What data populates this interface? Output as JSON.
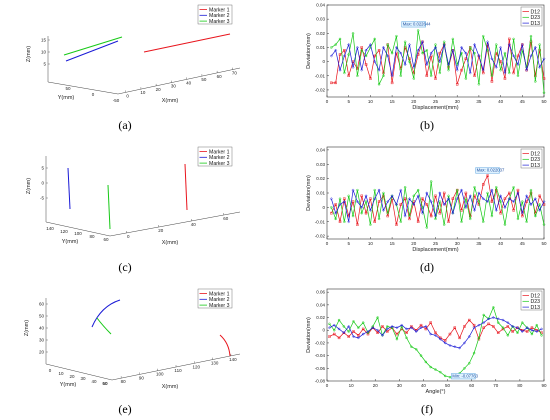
{
  "colors": {
    "d12": "#e8141c",
    "d23": "#16c916",
    "d13": "#1919d6",
    "annotation_fill": "#dff2ff",
    "annotation_stroke": "#3a92d8"
  },
  "panels": [
    {
      "id": "a",
      "label": "(a)"
    },
    {
      "id": "b",
      "label": "(b)"
    },
    {
      "id": "c",
      "label": "(c)"
    },
    {
      "id": "d",
      "label": "(d)"
    },
    {
      "id": "e",
      "label": "(e)"
    },
    {
      "id": "f",
      "label": "(f)"
    }
  ],
  "chart_data": [
    {
      "panel": "a",
      "type": "line3d",
      "xlabel": "X(mm)",
      "ylabel": "Y(mm)",
      "zlabel": "Z(mm)",
      "xticks": [
        "0",
        "10",
        "20",
        "30",
        "40",
        "50",
        "60",
        "70"
      ],
      "yticks": [
        "50",
        "0",
        "-50"
      ],
      "zticks": [
        "15",
        "10",
        "5"
      ],
      "legend": [
        "Marker 1",
        "Marker 2",
        "Marker 3"
      ],
      "series": [
        {
          "name": "Marker 1",
          "color": "#e8141c"
        },
        {
          "name": "Marker 2",
          "color": "#1919d6"
        },
        {
          "name": "Marker 3",
          "color": "#16c916"
        }
      ]
    },
    {
      "panel": "b",
      "type": "line",
      "xlabel": "Displacement(mm)",
      "ylabel": "Deviation(mm)",
      "xlim": [
        0,
        50
      ],
      "ylim": [
        -0.025,
        0.04
      ],
      "xticks": [
        "0",
        "5",
        "10",
        "15",
        "20",
        "25",
        "30",
        "35",
        "40",
        "45",
        "50"
      ],
      "yticks": [
        "0.04",
        "0.03",
        "0.02",
        "0.01",
        "0",
        "-0.01",
        "-0.02"
      ],
      "x": [
        1,
        2,
        3,
        4,
        5,
        6,
        7,
        8,
        9,
        10,
        11,
        12,
        13,
        14,
        15,
        16,
        17,
        18,
        19,
        20,
        21,
        22,
        23,
        24,
        25,
        26,
        27,
        28,
        29,
        30,
        31,
        32,
        33,
        34,
        35,
        36,
        37,
        38,
        39,
        40,
        41,
        42,
        43,
        44,
        45,
        46,
        47,
        48,
        49,
        50
      ],
      "series": [
        {
          "name": "D12",
          "color": "#e8141c",
          "values": [
            -0.015,
            -0.015,
            0.005,
            0.008,
            -0.01,
            0.0,
            -0.005,
            0.01,
            -0.002,
            -0.012,
            0.004,
            0.008,
            -0.008,
            0.012,
            -0.015,
            0.006,
            -0.005,
            0.01,
            0.002,
            -0.008,
            0.005,
            0.014,
            -0.01,
            0.004,
            -0.012,
            0.006,
            0.012,
            -0.004,
            0.008,
            -0.016,
            -0.006,
            0.002,
            0.01,
            -0.01,
            0.004,
            -0.008,
            0.012,
            -0.014,
            0.006,
            0.0,
            -0.012,
            0.016,
            -0.008,
            0.004,
            0.012,
            -0.006,
            0.014,
            -0.01,
            0.008,
            -0.012
          ]
        },
        {
          "name": "D23",
          "color": "#16c916",
          "values": [
            0.01,
            0.012,
            0.016,
            -0.008,
            0.005,
            0.02,
            -0.01,
            0.008,
            0.004,
            0.01,
            0.016,
            -0.016,
            -0.01,
            0.012,
            0.006,
            0.018,
            -0.01,
            0.014,
            0.0,
            -0.012,
            0.022,
            0.006,
            0.008,
            -0.01,
            0.012,
            -0.008,
            0.014,
            -0.006,
            0.016,
            -0.002,
            0.006,
            -0.012,
            0.01,
            0.006,
            -0.016,
            0.018,
            0.008,
            -0.01,
            0.012,
            -0.006,
            0.006,
            -0.008,
            0.016,
            -0.01,
            0.008,
            -0.004,
            0.018,
            -0.014,
            0.012,
            -0.022
          ]
        },
        {
          "name": "D13",
          "color": "#1919d6",
          "values": [
            0.004,
            0.008,
            -0.006,
            0.004,
            0.012,
            -0.004,
            0.01,
            -0.006,
            0.008,
            0.012,
            0.0,
            -0.006,
            0.01,
            0.004,
            -0.01,
            0.01,
            0.006,
            -0.002,
            0.012,
            -0.004,
            0.008,
            0.014,
            -0.002,
            0.006,
            0.01,
            0.0,
            0.012,
            -0.002,
            0.008,
            -0.006,
            0.01,
            0.006,
            -0.008,
            0.012,
            0.004,
            -0.006,
            0.014,
            0.002,
            -0.004,
            0.01,
            -0.008,
            0.012,
            0.004,
            -0.002,
            0.012,
            -0.006,
            0.004,
            0.01,
            -0.004,
            0.002
          ]
        }
      ],
      "legend": [
        "D12",
        "D23",
        "D13"
      ],
      "annotation": {
        "text": "Max: 0.022644",
        "x": 20,
        "y": 0.022644
      }
    },
    {
      "panel": "c",
      "type": "line3d",
      "xlabel": "X(mm)",
      "ylabel": "Y(mm)",
      "zlabel": "Z(mm)",
      "xticks": [
        "0",
        "20",
        "40",
        "60"
      ],
      "yticks": [
        "140",
        "120",
        "100",
        "80",
        "60"
      ],
      "zticks": [
        "5",
        "0",
        "-5"
      ],
      "legend": [
        "Marker 1",
        "Marker 2",
        "Marker 3"
      ],
      "series": [
        {
          "name": "Marker 1",
          "color": "#e8141c"
        },
        {
          "name": "Marker 2",
          "color": "#1919d6"
        },
        {
          "name": "Marker 3",
          "color": "#16c916"
        }
      ]
    },
    {
      "panel": "d",
      "type": "line",
      "xlabel": "Displacement(mm)",
      "ylabel": "Deviation(mm)",
      "xlim": [
        0,
        50
      ],
      "ylim": [
        -0.022,
        0.042
      ],
      "xticks": [
        "0",
        "5",
        "10",
        "15",
        "20",
        "25",
        "30",
        "35",
        "40",
        "45",
        "50"
      ],
      "yticks": [
        "0.04",
        "0.03",
        "0.02",
        "0.01",
        "0",
        "-0.01",
        "-0.02"
      ],
      "x": [
        1,
        2,
        3,
        4,
        5,
        6,
        7,
        8,
        9,
        10,
        11,
        12,
        13,
        14,
        15,
        16,
        17,
        18,
        19,
        20,
        21,
        22,
        23,
        24,
        25,
        26,
        27,
        28,
        29,
        30,
        31,
        32,
        33,
        34,
        35,
        36,
        37,
        38,
        39,
        40,
        41,
        42,
        43,
        44,
        45,
        46,
        47,
        48,
        49,
        50
      ],
      "series": [
        {
          "name": "D12",
          "color": "#e8141c",
          "values": [
            -0.004,
            0.002,
            -0.01,
            0.006,
            -0.006,
            0.004,
            -0.012,
            0.008,
            -0.004,
            0.006,
            -0.01,
            0.004,
            0.008,
            -0.006,
            0.006,
            -0.012,
            0.002,
            0.006,
            -0.008,
            0.004,
            -0.01,
            0.006,
            0.002,
            -0.006,
            0.008,
            -0.004,
            0.01,
            -0.01,
            0.006,
            0.012,
            -0.002,
            0.01,
            -0.006,
            0.008,
            0.002,
            0.016,
            0.022,
            0.004,
            0.012,
            -0.004,
            0.006,
            0.01,
            -0.002,
            0.012,
            -0.006,
            0.004,
            0.01,
            -0.004,
            0.008,
            0.002
          ]
        },
        {
          "name": "D23",
          "color": "#16c916",
          "values": [
            0.0,
            -0.008,
            0.006,
            -0.01,
            0.008,
            -0.006,
            0.012,
            -0.004,
            0.004,
            -0.012,
            0.012,
            -0.008,
            0.01,
            -0.004,
            0.008,
            0.002,
            -0.01,
            0.014,
            -0.006,
            0.008,
            0.012,
            0.0,
            -0.014,
            0.018,
            -0.008,
            0.004,
            -0.012,
            0.008,
            -0.004,
            0.012,
            -0.01,
            0.006,
            -0.008,
            0.014,
            0.004,
            -0.01,
            0.01,
            -0.006,
            0.014,
            0.004,
            -0.012,
            0.006,
            0.014,
            -0.008,
            0.004,
            -0.01,
            0.012,
            -0.006,
            0.002,
            -0.012
          ]
        },
        {
          "name": "D13",
          "color": "#1919d6",
          "values": [
            0.006,
            -0.004,
            0.002,
            0.004,
            -0.01,
            0.012,
            0.004,
            0.0,
            0.008,
            -0.002,
            0.006,
            0.012,
            -0.002,
            0.004,
            0.008,
            0.002,
            0.012,
            -0.006,
            0.006,
            0.002,
            0.008,
            -0.004,
            0.01,
            0.004,
            -0.006,
            0.01,
            0.002,
            0.006,
            -0.004,
            0.006,
            0.012,
            0.0,
            0.008,
            -0.002,
            0.01,
            0.006,
            0.004,
            0.012,
            -0.002,
            0.008,
            0.0,
            0.006,
            0.004,
            0.01,
            -0.004,
            0.008,
            0.002,
            0.006,
            -0.002,
            0.004
          ]
        }
      ],
      "legend": [
        "D12",
        "D23",
        "D13"
      ],
      "annotation": {
        "text": "Max: 0.022037",
        "x": 37,
        "y": 0.022037
      }
    },
    {
      "panel": "e",
      "type": "line3d",
      "xlabel": "X(mm)",
      "ylabel": "Y(mm)",
      "zlabel": "Z(mm)",
      "xticks": [
        "80",
        "90",
        "100",
        "110",
        "120",
        "130",
        "140"
      ],
      "yticks": [
        "0",
        "10",
        "20",
        "30",
        "40",
        "50",
        "60"
      ],
      "zticks": [
        "60",
        "50",
        "40",
        "30",
        "20"
      ],
      "legend": [
        "Marker 1",
        "Marker 2",
        "Marker 3"
      ],
      "series": [
        {
          "name": "Marker 1",
          "color": "#e8141c"
        },
        {
          "name": "Marker 2",
          "color": "#1919d6"
        },
        {
          "name": "Marker 3",
          "color": "#16c916"
        }
      ]
    },
    {
      "panel": "f",
      "type": "line",
      "xlabel": "Angle(°)",
      "ylabel": "Deviation(mm)",
      "xlim": [
        0,
        90
      ],
      "ylim": [
        -0.08,
        0.065
      ],
      "xticks": [
        "0",
        "10",
        "20",
        "30",
        "40",
        "50",
        "60",
        "70",
        "80",
        "90"
      ],
      "yticks": [
        "0.06",
        "0.04",
        "0.02",
        "0",
        "-0.02",
        "-0.04",
        "-0.06",
        "-0.08"
      ],
      "x": [
        1,
        3,
        5,
        7,
        9,
        11,
        13,
        15,
        17,
        19,
        21,
        23,
        25,
        27,
        29,
        31,
        33,
        35,
        37,
        39,
        41,
        43,
        45,
        47,
        49,
        51,
        53,
        55,
        57,
        59,
        61,
        63,
        65,
        67,
        69,
        71,
        73,
        75,
        77,
        79,
        81,
        83,
        85,
        87,
        89
      ],
      "series": [
        {
          "name": "D12",
          "color": "#e8141c",
          "values": [
            -0.01,
            -0.006,
            -0.012,
            -0.004,
            -0.01,
            -0.002,
            -0.008,
            0.002,
            -0.006,
            0.004,
            -0.004,
            0.006,
            -0.002,
            0.004,
            -0.006,
            0.002,
            -0.004,
            0.006,
            0.0,
            0.008,
            0.002,
            0.012,
            -0.004,
            -0.012,
            -0.016,
            -0.006,
            0.004,
            -0.012,
            0.006,
            0.016,
            0.008,
            -0.014,
            0.004,
            0.01,
            0.006,
            -0.004,
            0.002,
            0.006,
            -0.002,
            0.004,
            0.0,
            -0.002,
            0.004,
            0.0,
            -0.004
          ]
        },
        {
          "name": "D23",
          "color": "#16c916",
          "values": [
            0.01,
            0.0,
            0.016,
            0.006,
            -0.002,
            0.014,
            0.004,
            0.012,
            -0.004,
            0.006,
            0.02,
            -0.008,
            0.006,
            0.004,
            -0.014,
            0.006,
            -0.012,
            -0.026,
            -0.03,
            -0.04,
            -0.05,
            -0.058,
            -0.062,
            -0.066,
            -0.072,
            -0.074,
            -0.072,
            -0.068,
            -0.06,
            -0.052,
            -0.036,
            -0.012,
            0.024,
            0.018,
            0.036,
            0.012,
            0.004,
            -0.008,
            0.006,
            -0.004,
            0.012,
            0.004,
            -0.006,
            0.008,
            -0.008
          ]
        },
        {
          "name": "D13",
          "color": "#1919d6",
          "values": [
            0.004,
            0.008,
            0.002,
            -0.004,
            0.006,
            -0.01,
            -0.012,
            -0.006,
            -0.002,
            0.004,
            0.0,
            -0.008,
            0.002,
            0.006,
            0.004,
            0.008,
            0.002,
            0.004,
            -0.002,
            0.004,
            0.006,
            -0.006,
            -0.008,
            -0.014,
            -0.02,
            -0.024,
            -0.026,
            -0.028,
            -0.02,
            -0.01,
            0.004,
            0.008,
            0.012,
            0.018,
            0.02,
            0.018,
            0.016,
            0.012,
            0.006,
            0.004,
            -0.002,
            0.004,
            0.0,
            -0.002,
            0.002
          ]
        }
      ],
      "legend": [
        "D12",
        "D23",
        "D13"
      ],
      "annotation": {
        "text": "Min: -0.07763",
        "x": 52,
        "y": -0.07763
      }
    }
  ]
}
